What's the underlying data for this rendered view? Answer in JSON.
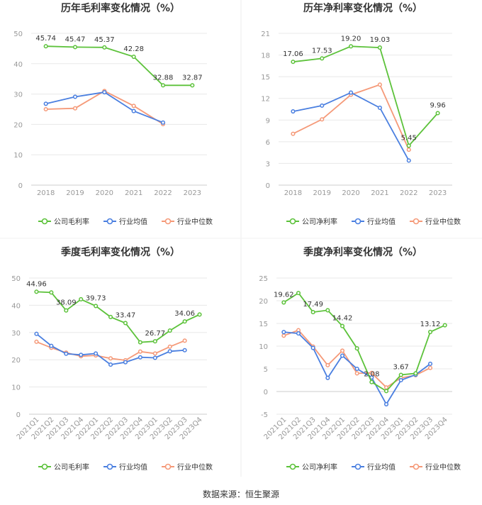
{
  "source_text": "数据来源：恒生聚源",
  "colors": {
    "company": "#5cc23a",
    "industry_avg": "#4a7fe0",
    "industry_median": "#f59978",
    "axis": "#999999",
    "grid": "#e8e8e8"
  },
  "chart_data": [
    {
      "type": "line",
      "title": "历年毛利率变化情况（%）",
      "categories": [
        "2018",
        "2019",
        "2020",
        "2021",
        "2022",
        "2023"
      ],
      "ylim": [
        0,
        50
      ],
      "yticks": [
        0,
        10,
        20,
        30,
        40,
        50
      ],
      "grid": true,
      "legend_position": "bottom",
      "series": [
        {
          "name": "公司毛利率",
          "values": [
            45.74,
            45.47,
            45.37,
            42.28,
            32.88,
            32.87
          ],
          "labels": [
            "45.74",
            "45.47",
            "45.37",
            "42.28",
            "32.88",
            "32.87"
          ]
        },
        {
          "name": "行业均值",
          "values": [
            26.8,
            29.1,
            30.6,
            24.4,
            20.6,
            null
          ]
        },
        {
          "name": "行业中位数",
          "values": [
            25.0,
            25.3,
            31.0,
            26.1,
            20.1,
            null
          ]
        }
      ]
    },
    {
      "type": "line",
      "title": "历年净利率变化情况（%）",
      "categories": [
        "2018",
        "2019",
        "2020",
        "2021",
        "2022",
        "2023"
      ],
      "ylim": [
        0,
        21
      ],
      "yticks": [
        0,
        3,
        6,
        9,
        12,
        15,
        18,
        21
      ],
      "grid": true,
      "legend_position": "bottom",
      "series": [
        {
          "name": "公司净利率",
          "values": [
            17.06,
            17.53,
            19.2,
            19.03,
            5.45,
            9.96
          ],
          "labels": [
            "17.06",
            "17.53",
            "19.20",
            "19.03",
            "5.45",
            "9.96"
          ]
        },
        {
          "name": "行业均值",
          "values": [
            10.2,
            11.0,
            12.8,
            10.7,
            3.4,
            null
          ]
        },
        {
          "name": "行业中位数",
          "values": [
            7.1,
            9.1,
            12.5,
            13.9,
            4.9,
            null
          ]
        }
      ]
    },
    {
      "type": "line",
      "title": "季度毛利率变化情况（%）",
      "categories": [
        "2021Q1",
        "2021Q2",
        "2021Q3",
        "2021Q4",
        "2022Q1",
        "2022Q2",
        "2022Q3",
        "2022Q4",
        "2023Q1",
        "2023Q2",
        "2023Q3",
        "2023Q4"
      ],
      "ylim": [
        0,
        50
      ],
      "yticks": [
        0,
        10,
        20,
        30,
        40,
        50
      ],
      "grid": true,
      "legend_position": "bottom",
      "series": [
        {
          "name": "公司毛利率",
          "values": [
            44.96,
            44.7,
            38.09,
            42.2,
            39.73,
            35.7,
            33.47,
            26.4,
            26.77,
            30.7,
            34.06,
            36.6
          ],
          "labels": [
            "44.96",
            "",
            "38.09",
            "",
            "39.73",
            "",
            "33.47",
            "",
            "26.77",
            "",
            "34.06",
            ""
          ]
        },
        {
          "name": "行业均值",
          "values": [
            29.5,
            25.1,
            22.2,
            21.8,
            22.3,
            18.2,
            19.1,
            20.9,
            20.7,
            23.1,
            23.5,
            null
          ]
        },
        {
          "name": "行业中位数",
          "values": [
            26.6,
            24.4,
            22.6,
            21.3,
            21.6,
            20.5,
            19.8,
            23.0,
            22.3,
            24.8,
            27.0,
            null
          ]
        }
      ]
    },
    {
      "type": "line",
      "title": "季度净利率变化情况（%）",
      "categories": [
        "2021Q1",
        "2021Q2",
        "2021Q3",
        "2021Q4",
        "2022Q1",
        "2022Q2",
        "2022Q3",
        "2022Q4",
        "2023Q1",
        "2023Q2",
        "2023Q3",
        "2023Q4"
      ],
      "ylim": [
        -5,
        25
      ],
      "yticks": [
        -5,
        0,
        5,
        10,
        15,
        20,
        25
      ],
      "grid": true,
      "legend_position": "bottom",
      "series": [
        {
          "name": "公司净利率",
          "values": [
            19.62,
            21.7,
            17.49,
            17.9,
            14.42,
            9.5,
            2.08,
            0.1,
            3.67,
            4.0,
            13.12,
            14.6
          ],
          "labels": [
            "19.62",
            "",
            "17.49",
            "",
            "14.42",
            "",
            "2.08",
            "",
            "3.67",
            "",
            "13.12",
            ""
          ]
        },
        {
          "name": "行业均值",
          "values": [
            13.1,
            12.8,
            9.6,
            3.0,
            7.9,
            5.0,
            3.1,
            -2.8,
            2.5,
            3.7,
            6.1,
            null
          ]
        },
        {
          "name": "行业中位数",
          "values": [
            12.3,
            13.5,
            9.9,
            5.8,
            9.0,
            4.0,
            4.1,
            0.9,
            3.0,
            3.6,
            5.2,
            null
          ]
        }
      ]
    }
  ]
}
